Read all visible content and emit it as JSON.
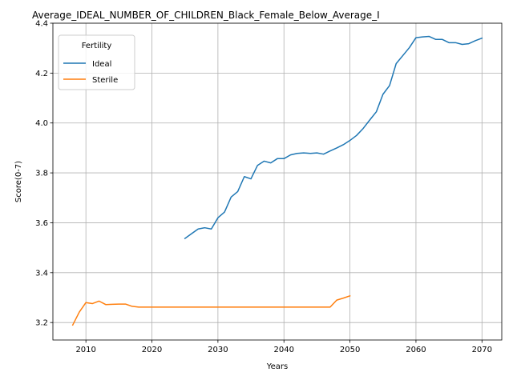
{
  "chart_data": {
    "type": "line",
    "title": "Average_IDEAL_NUMBER_OF_CHILDREN_Black_Female_Below_Average_I",
    "xlabel": "Years",
    "ylabel": "Score(0-7)",
    "xlim": [
      2005,
      2073
    ],
    "ylim": [
      3.13,
      4.4
    ],
    "xticks": [
      2010,
      2020,
      2030,
      2040,
      2050,
      2060,
      2070
    ],
    "xtick_labels": [
      "2010",
      "2020",
      "2030",
      "2040",
      "2050",
      "2060",
      "2070"
    ],
    "yticks": [
      3.2,
      3.4,
      3.6,
      3.8,
      4.0,
      4.2,
      4.4
    ],
    "ytick_labels": [
      "3.2",
      "3.4",
      "3.6",
      "3.8",
      "4.0",
      "4.2",
      "4.4"
    ],
    "grid": true,
    "legend": {
      "title": "Fertility",
      "placement": "top-left"
    },
    "series": [
      {
        "name": "Ideal",
        "color": "#1f77b4",
        "x": [
          2025,
          2026,
          2027,
          2028,
          2029,
          2030,
          2031,
          2032,
          2033,
          2034,
          2035,
          2036,
          2037,
          2038,
          2039,
          2040,
          2041,
          2042,
          2043,
          2044,
          2045,
          2046,
          2047,
          2048,
          2049,
          2050,
          2051,
          2052,
          2053,
          2054,
          2055,
          2056,
          2057,
          2058,
          2059,
          2060,
          2061,
          2062,
          2063,
          2064,
          2065,
          2066,
          2067,
          2068,
          2069,
          2070
        ],
        "y": [
          3.537,
          3.556,
          3.575,
          3.58,
          3.575,
          3.62,
          3.643,
          3.703,
          3.725,
          3.785,
          3.776,
          3.83,
          3.847,
          3.84,
          3.857,
          3.857,
          3.872,
          3.878,
          3.88,
          3.878,
          3.88,
          3.875,
          3.888,
          3.9,
          3.913,
          3.93,
          3.95,
          3.978,
          4.012,
          4.045,
          4.115,
          4.15,
          4.238,
          4.27,
          4.302,
          4.342,
          4.345,
          4.347,
          4.335,
          4.335,
          4.322,
          4.322,
          4.315,
          4.318,
          4.33,
          4.34
        ]
      },
      {
        "name": "Sterile",
        "color": "#ff7f0e",
        "x": [
          2008,
          2009,
          2010,
          2011,
          2012,
          2013,
          2014,
          2015,
          2016,
          2017,
          2018,
          2019,
          2020,
          2025,
          2030,
          2035,
          2040,
          2045,
          2046,
          2047,
          2048,
          2049,
          2050
        ],
        "y": [
          3.19,
          3.242,
          3.28,
          3.276,
          3.286,
          3.272,
          3.273,
          3.274,
          3.274,
          3.265,
          3.262,
          3.262,
          3.262,
          3.262,
          3.262,
          3.262,
          3.262,
          3.262,
          3.262,
          3.262,
          3.29,
          3.298,
          3.307
        ]
      }
    ]
  }
}
